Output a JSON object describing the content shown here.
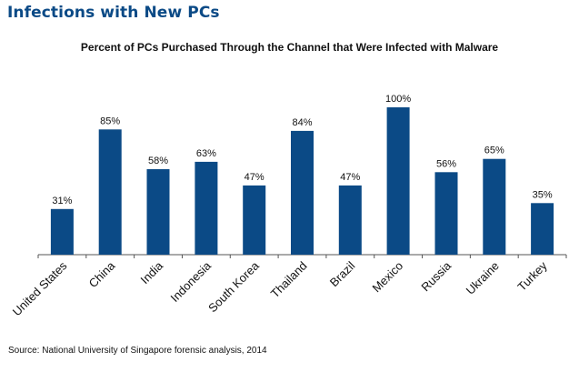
{
  "page": {
    "title": "Infections with New PCs",
    "source": "Source: National University of Singapore forensic analysis, 2014"
  },
  "colors": {
    "title": "#0b4a86",
    "bar": "#0b4a86",
    "axis": "#555555"
  },
  "chart_data": {
    "type": "bar",
    "title": "Percent of PCs Purchased Through the Channel that Were Infected with Malware",
    "xlabel": "",
    "ylabel": "",
    "categories": [
      "United States",
      "China",
      "India",
      "Indonesia",
      "South Korea",
      "Thailand",
      "Brazil",
      "Mexico",
      "Russia",
      "Ukraine",
      "Turkey"
    ],
    "values": [
      31,
      85,
      58,
      63,
      47,
      84,
      47,
      100,
      56,
      65,
      35
    ],
    "data_labels": [
      "31%",
      "85%",
      "58%",
      "63%",
      "47%",
      "84%",
      "47%",
      "100%",
      "56%",
      "65%",
      "35%"
    ],
    "ylim": [
      0,
      100
    ],
    "grid": false,
    "legend": "none"
  }
}
